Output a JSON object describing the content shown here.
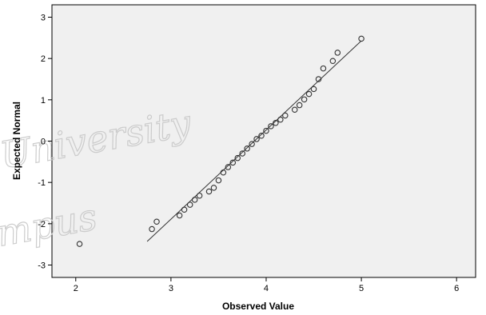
{
  "chart_data": {
    "type": "scatter",
    "title": "",
    "xlabel": "Observed Value",
    "ylabel": "Expected Normal",
    "xlim": [
      1.75,
      6.2
    ],
    "ylim": [
      -3.3,
      3.3
    ],
    "x_ticks": [
      2,
      3,
      4,
      5,
      6
    ],
    "y_ticks": [
      -3,
      -2,
      -1,
      0,
      1,
      2,
      3
    ],
    "grid": false,
    "legend": "none",
    "series": [
      {
        "points": [
          {
            "x": 2.04,
            "y": -2.49
          },
          {
            "x": 2.8,
            "y": -2.13
          },
          {
            "x": 2.85,
            "y": -1.95
          },
          {
            "x": 3.09,
            "y": -1.8
          },
          {
            "x": 3.14,
            "y": -1.66
          },
          {
            "x": 3.2,
            "y": -1.54
          },
          {
            "x": 3.25,
            "y": -1.42
          },
          {
            "x": 3.3,
            "y": -1.32
          },
          {
            "x": 3.4,
            "y": -1.22
          },
          {
            "x": 3.45,
            "y": -1.13
          },
          {
            "x": 3.5,
            "y": -0.95
          },
          {
            "x": 3.55,
            "y": -0.76
          },
          {
            "x": 3.6,
            "y": -0.63
          },
          {
            "x": 3.65,
            "y": -0.52
          },
          {
            "x": 3.7,
            "y": -0.41
          },
          {
            "x": 3.75,
            "y": -0.3
          },
          {
            "x": 3.8,
            "y": -0.18
          },
          {
            "x": 3.85,
            "y": -0.07
          },
          {
            "x": 3.9,
            "y": 0.05
          },
          {
            "x": 3.95,
            "y": 0.13
          },
          {
            "x": 4.0,
            "y": 0.25
          },
          {
            "x": 4.05,
            "y": 0.36
          },
          {
            "x": 4.1,
            "y": 0.44
          },
          {
            "x": 4.15,
            "y": 0.52
          },
          {
            "x": 4.2,
            "y": 0.62
          },
          {
            "x": 4.3,
            "y": 0.76
          },
          {
            "x": 4.35,
            "y": 0.87
          },
          {
            "x": 4.4,
            "y": 1.01
          },
          {
            "x": 4.45,
            "y": 1.14
          },
          {
            "x": 4.5,
            "y": 1.26
          },
          {
            "x": 4.55,
            "y": 1.5
          },
          {
            "x": 4.6,
            "y": 1.76
          },
          {
            "x": 4.7,
            "y": 1.94
          },
          {
            "x": 4.75,
            "y": 2.14
          },
          {
            "x": 5.0,
            "y": 2.48
          }
        ]
      }
    ],
    "reference_line": {
      "x1": 2.75,
      "y1": -2.43,
      "x2": 5.0,
      "y2": 2.43
    },
    "watermark": [
      "University",
      "mpus"
    ],
    "colors": {
      "plot_background": "#f0f0f0",
      "marker_stroke": "#333333",
      "line": "#333333",
      "axis": "#000000",
      "watermark": "#c8c8c8"
    }
  }
}
